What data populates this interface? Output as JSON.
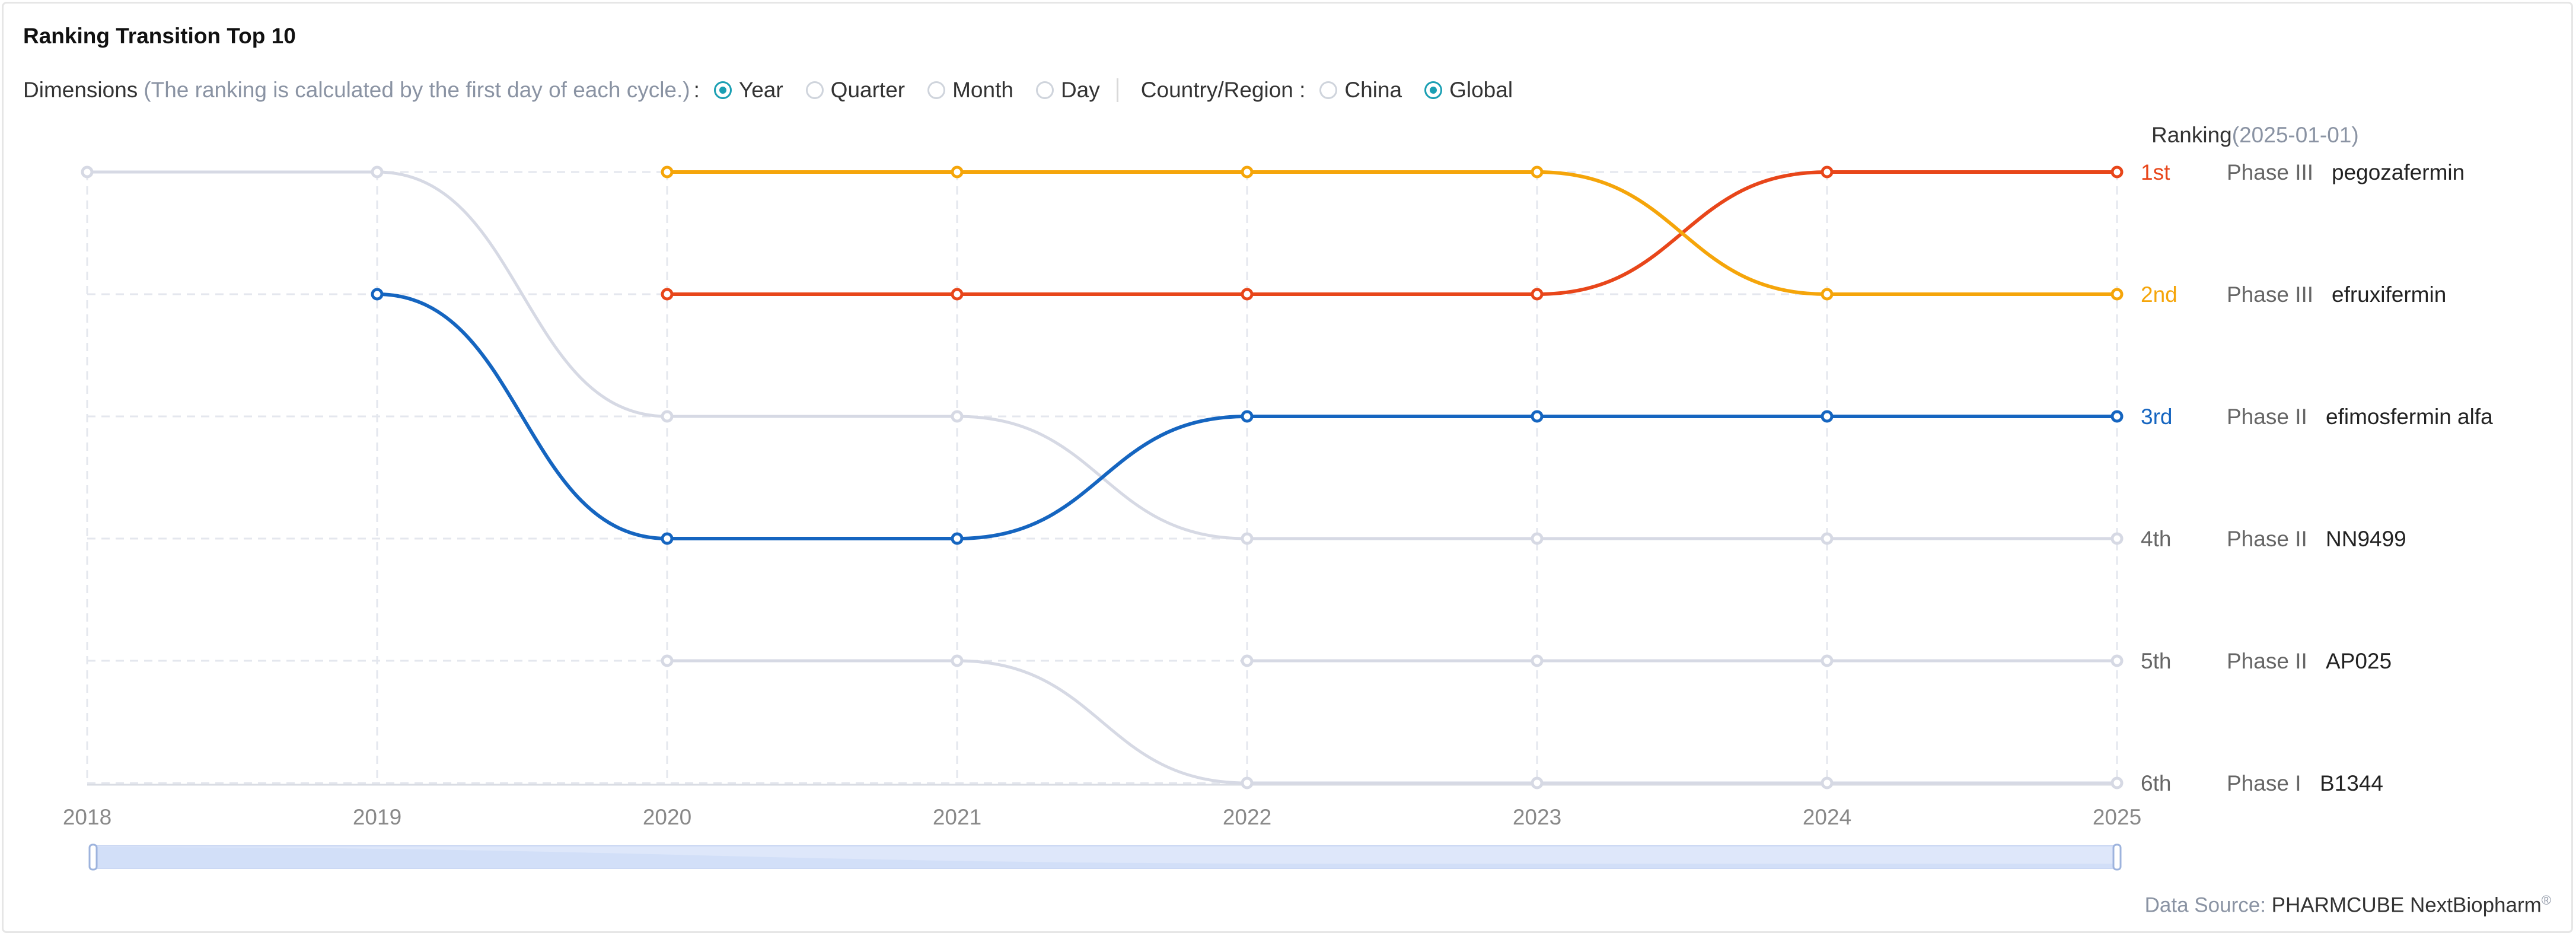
{
  "title": "Ranking Transition Top 10",
  "dimensions": {
    "label": "Dimensions",
    "note": "(The ranking is calculated by the first day of each cycle.)",
    "colon": ":",
    "options": [
      {
        "label": "Year",
        "checked": true
      },
      {
        "label": "Quarter",
        "checked": false
      },
      {
        "label": "Month",
        "checked": false
      },
      {
        "label": "Day",
        "checked": false
      }
    ]
  },
  "region": {
    "label": "Country/Region :",
    "options": [
      {
        "label": "China",
        "checked": false
      },
      {
        "label": "Global",
        "checked": true
      }
    ]
  },
  "ranking_header": {
    "label": "Ranking",
    "date": "(2025-01-01)"
  },
  "data_source": {
    "label": "Data Source:",
    "brand": "PHARMCUBE NextBiopharm",
    "mark": "®"
  },
  "colors": {
    "pegozafermin": "#e8461a",
    "efruxifermin": "#f5a50a",
    "efimosfermin_alfa": "#1565c0",
    "inactive": "#d6d9e4",
    "grid": "#e4e7ee",
    "rank_inactive": "#666666"
  },
  "chart_data": {
    "type": "line",
    "title": "Ranking Transition Top 10",
    "x": [
      "2018",
      "2019",
      "2020",
      "2021",
      "2022",
      "2023",
      "2024",
      "2025"
    ],
    "ylabel": "Ranking",
    "y_inverted": true,
    "ylim": [
      1,
      6
    ],
    "grid": true,
    "series": [
      {
        "name": "pegozafermin",
        "phase": "Phase III",
        "rank_label": "1st",
        "highlight": true,
        "values": [
          null,
          null,
          2,
          2,
          2,
          2,
          1,
          1
        ]
      },
      {
        "name": "efruxifermin",
        "phase": "Phase III",
        "rank_label": "2nd",
        "highlight": true,
        "values": [
          null,
          null,
          1,
          1,
          1,
          1,
          2,
          2
        ]
      },
      {
        "name": "efimosfermin alfa",
        "phase": "Phase II",
        "rank_label": "3rd",
        "highlight": true,
        "values": [
          null,
          2,
          4,
          4,
          3,
          3,
          3,
          3
        ]
      },
      {
        "name": "NN9499",
        "phase": "Phase II",
        "rank_label": "4th",
        "highlight": false,
        "values": [
          1,
          1,
          3,
          3,
          4,
          4,
          4,
          4
        ]
      },
      {
        "name": "AP025",
        "phase": "Phase II",
        "rank_label": "5th",
        "highlight": false,
        "values": [
          null,
          null,
          null,
          null,
          5,
          5,
          5,
          5
        ]
      },
      {
        "name": "B1344",
        "phase": "Phase I",
        "rank_label": "6th",
        "highlight": false,
        "values": [
          null,
          null,
          5,
          5,
          6,
          6,
          6,
          6
        ]
      }
    ]
  }
}
